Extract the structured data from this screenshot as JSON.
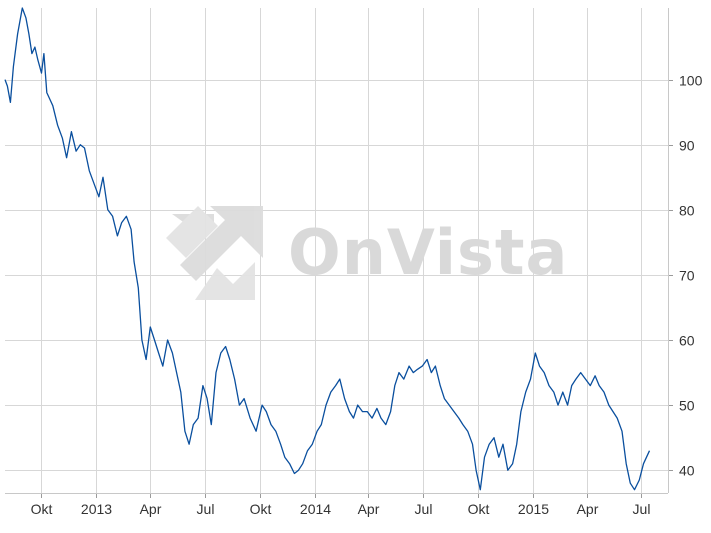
{
  "watermark": {
    "text": "OnVista",
    "color": "#d9d9d9"
  },
  "colors": {
    "line": "#0a4f9e",
    "grid": "#d7d7d7",
    "background": "#ffffff"
  },
  "chart_data": {
    "type": "line",
    "title": "",
    "xlabel": "",
    "ylabel": "",
    "x_axis": {
      "type": "date",
      "range": [
        "2012-08-01",
        "2015-08-15"
      ],
      "ticks": [
        {
          "date": "2012-10-01",
          "label": "Okt"
        },
        {
          "date": "2013-01-01",
          "label": "2013"
        },
        {
          "date": "2013-04-01",
          "label": "Apr"
        },
        {
          "date": "2013-07-01",
          "label": "Jul"
        },
        {
          "date": "2013-10-01",
          "label": "Okt"
        },
        {
          "date": "2014-01-01",
          "label": "2014"
        },
        {
          "date": "2014-04-01",
          "label": "Apr"
        },
        {
          "date": "2014-07-01",
          "label": "Jul"
        },
        {
          "date": "2014-10-01",
          "label": "Okt"
        },
        {
          "date": "2015-01-01",
          "label": "2015"
        },
        {
          "date": "2015-04-01",
          "label": "Apr"
        },
        {
          "date": "2015-07-01",
          "label": "Jul"
        }
      ]
    },
    "y_axis": {
      "position": "right",
      "range": [
        36.5,
        111
      ],
      "ticks": [
        40,
        50,
        60,
        70,
        80,
        90,
        100
      ]
    },
    "grid": true,
    "legend": "none",
    "series": [
      {
        "color": "#0a4f9e",
        "points": [
          [
            "2012-08-01",
            100
          ],
          [
            "2012-08-05",
            99
          ],
          [
            "2012-08-10",
            96.5
          ],
          [
            "2012-08-15",
            102
          ],
          [
            "2012-08-22",
            107
          ],
          [
            "2012-08-30",
            111
          ],
          [
            "2012-09-05",
            109.5
          ],
          [
            "2012-09-10",
            107
          ],
          [
            "2012-09-15",
            104
          ],
          [
            "2012-09-20",
            105
          ],
          [
            "2012-09-25",
            103
          ],
          [
            "2012-10-01",
            101
          ],
          [
            "2012-10-05",
            104
          ],
          [
            "2012-10-10",
            98
          ],
          [
            "2012-10-15",
            97
          ],
          [
            "2012-10-20",
            96
          ],
          [
            "2012-10-28",
            93
          ],
          [
            "2012-11-05",
            91
          ],
          [
            "2012-11-12",
            88
          ],
          [
            "2012-11-20",
            92
          ],
          [
            "2012-11-28",
            89
          ],
          [
            "2012-12-05",
            90
          ],
          [
            "2012-12-12",
            89.5
          ],
          [
            "2012-12-20",
            86
          ],
          [
            "2012-12-28",
            84
          ],
          [
            "2013-01-05",
            82
          ],
          [
            "2013-01-12",
            85
          ],
          [
            "2013-01-20",
            80
          ],
          [
            "2013-01-28",
            79
          ],
          [
            "2013-02-05",
            76
          ],
          [
            "2013-02-12",
            78
          ],
          [
            "2013-02-20",
            79
          ],
          [
            "2013-02-28",
            77
          ],
          [
            "2013-03-05",
            72
          ],
          [
            "2013-03-12",
            68
          ],
          [
            "2013-03-18",
            60
          ],
          [
            "2013-03-25",
            57
          ],
          [
            "2013-04-01",
            62
          ],
          [
            "2013-04-08",
            60
          ],
          [
            "2013-04-15",
            58
          ],
          [
            "2013-04-22",
            56
          ],
          [
            "2013-04-30",
            60
          ],
          [
            "2013-05-08",
            58
          ],
          [
            "2013-05-15",
            55
          ],
          [
            "2013-05-22",
            52
          ],
          [
            "2013-05-29",
            46
          ],
          [
            "2013-06-05",
            44
          ],
          [
            "2013-06-12",
            47
          ],
          [
            "2013-06-20",
            48
          ],
          [
            "2013-06-28",
            53
          ],
          [
            "2013-07-05",
            51
          ],
          [
            "2013-07-12",
            47
          ],
          [
            "2013-07-20",
            55
          ],
          [
            "2013-07-28",
            58
          ],
          [
            "2013-08-05",
            59
          ],
          [
            "2013-08-12",
            57
          ],
          [
            "2013-08-20",
            54
          ],
          [
            "2013-08-28",
            50
          ],
          [
            "2013-09-05",
            51
          ],
          [
            "2013-09-15",
            48
          ],
          [
            "2013-09-25",
            46
          ],
          [
            "2013-10-05",
            50
          ],
          [
            "2013-10-12",
            49
          ],
          [
            "2013-10-20",
            47
          ],
          [
            "2013-10-28",
            46
          ],
          [
            "2013-11-05",
            44
          ],
          [
            "2013-11-12",
            42
          ],
          [
            "2013-11-20",
            41
          ],
          [
            "2013-11-28",
            39.5
          ],
          [
            "2013-12-05",
            40
          ],
          [
            "2013-12-12",
            41
          ],
          [
            "2013-12-20",
            43
          ],
          [
            "2013-12-28",
            44
          ],
          [
            "2014-01-05",
            46
          ],
          [
            "2014-01-12",
            47
          ],
          [
            "2014-01-20",
            50
          ],
          [
            "2014-01-28",
            52
          ],
          [
            "2014-02-05",
            53
          ],
          [
            "2014-02-12",
            54
          ],
          [
            "2014-02-20",
            51
          ],
          [
            "2014-02-28",
            49
          ],
          [
            "2014-03-07",
            48
          ],
          [
            "2014-03-14",
            50
          ],
          [
            "2014-03-22",
            49
          ],
          [
            "2014-03-30",
            49
          ],
          [
            "2014-04-07",
            48
          ],
          [
            "2014-04-15",
            49.5
          ],
          [
            "2014-04-22",
            48
          ],
          [
            "2014-04-30",
            47
          ],
          [
            "2014-05-08",
            49
          ],
          [
            "2014-05-15",
            53
          ],
          [
            "2014-05-22",
            55
          ],
          [
            "2014-05-30",
            54
          ],
          [
            "2014-06-08",
            56
          ],
          [
            "2014-06-15",
            55
          ],
          [
            "2014-06-22",
            55.5
          ],
          [
            "2014-06-30",
            56
          ],
          [
            "2014-07-08",
            57
          ],
          [
            "2014-07-15",
            55
          ],
          [
            "2014-07-22",
            56
          ],
          [
            "2014-07-30",
            53
          ],
          [
            "2014-08-06",
            51
          ],
          [
            "2014-08-14",
            50
          ],
          [
            "2014-08-22",
            49
          ],
          [
            "2014-08-30",
            48
          ],
          [
            "2014-09-06",
            47
          ],
          [
            "2014-09-14",
            46
          ],
          [
            "2014-09-22",
            44
          ],
          [
            "2014-09-28",
            40
          ],
          [
            "2014-10-05",
            37
          ],
          [
            "2014-10-12",
            42
          ],
          [
            "2014-10-20",
            44
          ],
          [
            "2014-10-28",
            45
          ],
          [
            "2014-11-05",
            42
          ],
          [
            "2014-11-12",
            44
          ],
          [
            "2014-11-20",
            40
          ],
          [
            "2014-11-28",
            41
          ],
          [
            "2014-12-05",
            44
          ],
          [
            "2014-12-12",
            49
          ],
          [
            "2014-12-20",
            52
          ],
          [
            "2014-12-28",
            54
          ],
          [
            "2015-01-05",
            58
          ],
          [
            "2015-01-12",
            56
          ],
          [
            "2015-01-20",
            55
          ],
          [
            "2015-01-28",
            53
          ],
          [
            "2015-02-05",
            52
          ],
          [
            "2015-02-12",
            50
          ],
          [
            "2015-02-20",
            52
          ],
          [
            "2015-02-28",
            50
          ],
          [
            "2015-03-07",
            53
          ],
          [
            "2015-03-14",
            54
          ],
          [
            "2015-03-22",
            55
          ],
          [
            "2015-03-30",
            54
          ],
          [
            "2015-04-07",
            53
          ],
          [
            "2015-04-15",
            54.5
          ],
          [
            "2015-04-22",
            53
          ],
          [
            "2015-04-30",
            52
          ],
          [
            "2015-05-08",
            50
          ],
          [
            "2015-05-15",
            49
          ],
          [
            "2015-05-22",
            48
          ],
          [
            "2015-05-30",
            46
          ],
          [
            "2015-06-06",
            41
          ],
          [
            "2015-06-13",
            38
          ],
          [
            "2015-06-20",
            37
          ],
          [
            "2015-06-28",
            38.5
          ],
          [
            "2015-07-05",
            41
          ],
          [
            "2015-07-10",
            42
          ],
          [
            "2015-07-15",
            43
          ]
        ]
      }
    ]
  }
}
